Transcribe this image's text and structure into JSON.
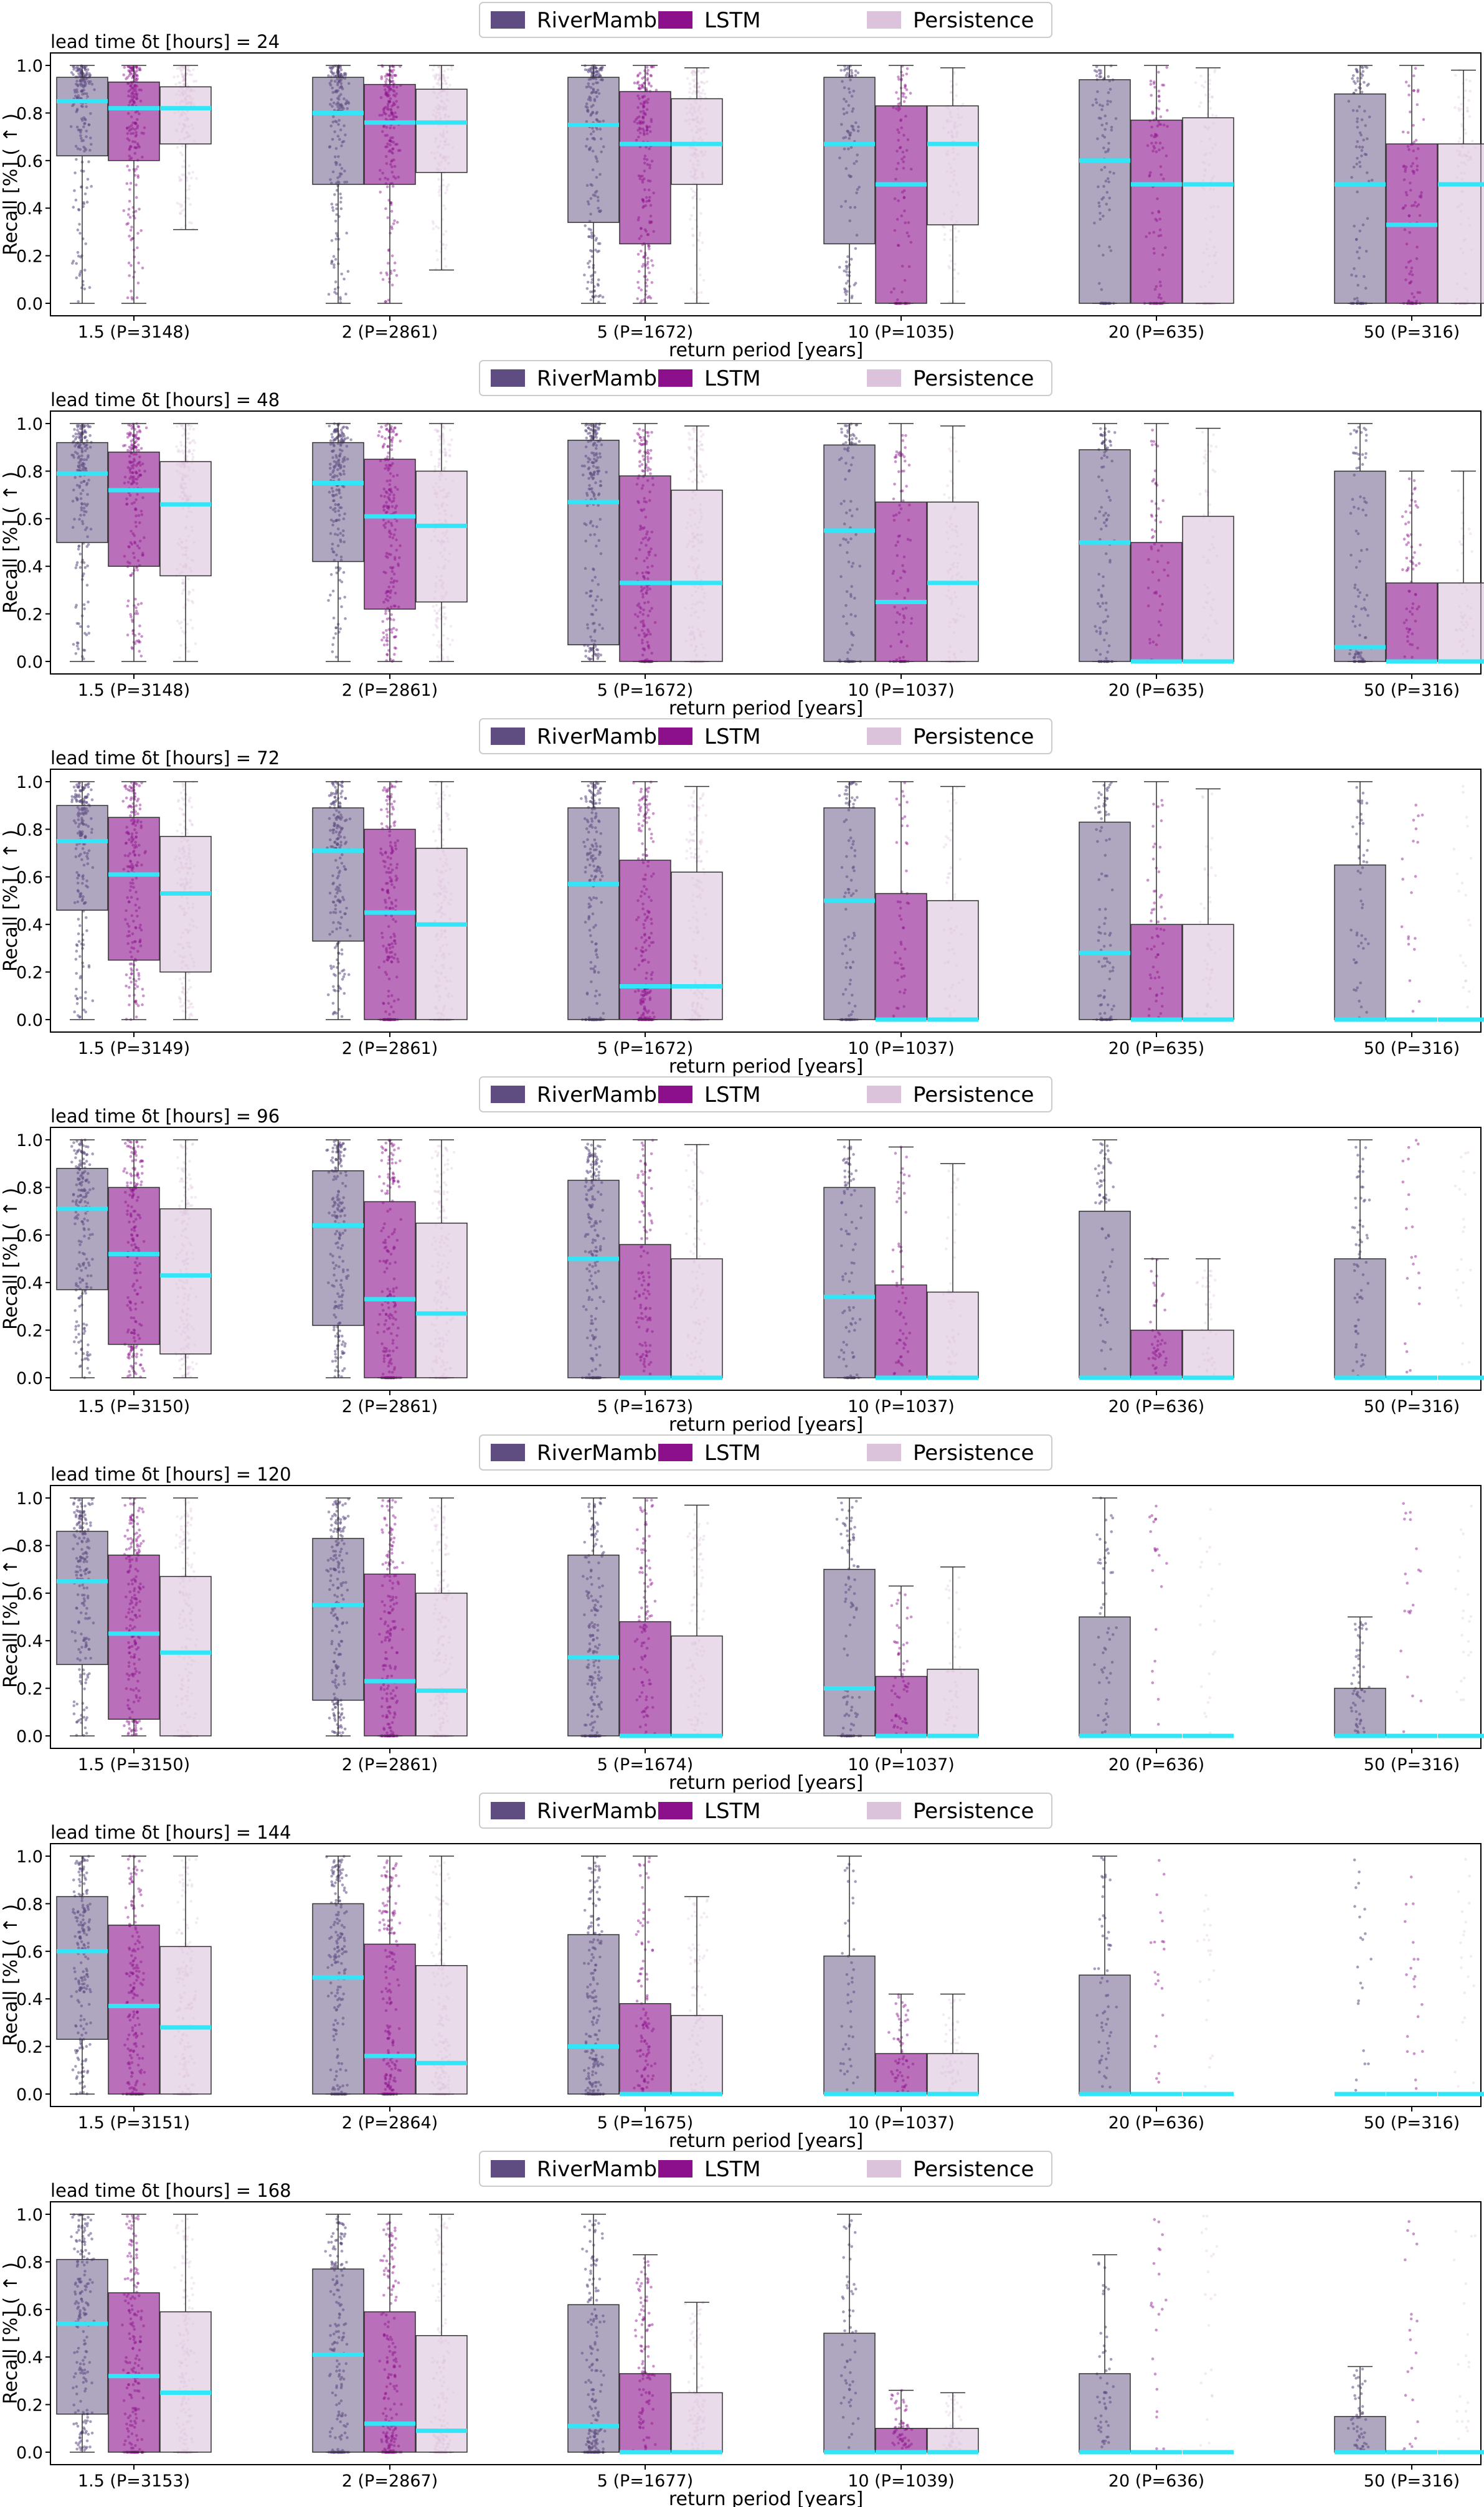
{
  "chart_data": {
    "type": "boxplot-strip",
    "description_units": "Recall [%] on a 0-1 scale",
    "xlabel": "return period [years]",
    "ylabel": "Recall [%] ( ↑ )",
    "ylim": [
      0.0,
      1.0
    ],
    "yticks": [
      "0.0",
      "0.2",
      "0.4",
      "0.6",
      "0.8",
      "1.0"
    ],
    "legend": {
      "placement": "top-center",
      "entries": [
        "RiverMamba",
        "LSTM",
        "Persistence"
      ]
    },
    "series_colors": {
      "RiverMamba": "#5f4d82",
      "LSTM": "#8c0f8c",
      "Persistence": "#dcc3dc",
      "median": "#33e6f7"
    },
    "panels": [
      {
        "title": "lead time δt [hours] = 24",
        "categories": [
          "1.5 (P=3148)",
          "2 (P=2861)",
          "5 (P=1672)",
          "10 (P=1035)",
          "20 (P=635)",
          "50 (P=316)"
        ],
        "series": [
          {
            "name": "RiverMamba",
            "q1": [
              0.62,
              0.5,
              0.34,
              0.25,
              0.0,
              0.0
            ],
            "median": [
              0.85,
              0.8,
              0.75,
              0.67,
              0.6,
              0.5
            ],
            "q3": [
              0.95,
              0.95,
              0.95,
              0.95,
              0.94,
              0.88
            ],
            "whisker_low": [
              0.0,
              0.0,
              0.0,
              0.0,
              0.0,
              0.0
            ],
            "whisker_high": [
              1.0,
              1.0,
              1.0,
              1.0,
              1.0,
              1.0
            ]
          },
          {
            "name": "LSTM",
            "q1": [
              0.6,
              0.5,
              0.25,
              0.0,
              0.0,
              0.0
            ],
            "median": [
              0.82,
              0.76,
              0.67,
              0.5,
              0.5,
              0.33
            ],
            "q3": [
              0.93,
              0.92,
              0.89,
              0.83,
              0.77,
              0.67
            ],
            "whisker_low": [
              0.0,
              0.0,
              0.0,
              0.0,
              0.0,
              0.0
            ],
            "whisker_high": [
              1.0,
              1.0,
              1.0,
              1.0,
              1.0,
              1.0
            ]
          },
          {
            "name": "Persistence",
            "q1": [
              0.67,
              0.55,
              0.5,
              0.33,
              0.0,
              0.0
            ],
            "median": [
              0.82,
              0.76,
              0.67,
              0.67,
              0.5,
              0.5
            ],
            "q3": [
              0.91,
              0.9,
              0.86,
              0.83,
              0.78,
              0.67
            ],
            "whisker_low": [
              0.31,
              0.14,
              0.0,
              0.0,
              0.0,
              0.0
            ],
            "whisker_high": [
              1.0,
              1.0,
              0.99,
              0.99,
              0.99,
              0.98
            ]
          }
        ]
      },
      {
        "title": "lead time δt [hours] = 48",
        "categories": [
          "1.5 (P=3148)",
          "2 (P=2861)",
          "5 (P=1672)",
          "10 (P=1037)",
          "20 (P=635)",
          "50 (P=316)"
        ],
        "series": [
          {
            "name": "RiverMamba",
            "q1": [
              0.5,
              0.42,
              0.07,
              0.0,
              0.0,
              0.0
            ],
            "median": [
              0.79,
              0.75,
              0.67,
              0.55,
              0.5,
              0.06
            ],
            "q3": [
              0.92,
              0.92,
              0.93,
              0.91,
              0.89,
              0.8
            ],
            "whisker_low": [
              0.0,
              0.0,
              0.0,
              0.0,
              0.0,
              0.0
            ],
            "whisker_high": [
              1.0,
              1.0,
              1.0,
              1.0,
              1.0,
              1.0
            ]
          },
          {
            "name": "LSTM",
            "q1": [
              0.4,
              0.22,
              0.0,
              0.0,
              0.0,
              0.0
            ],
            "median": [
              0.72,
              0.61,
              0.33,
              0.25,
              0.0,
              0.0
            ],
            "q3": [
              0.88,
              0.85,
              0.78,
              0.67,
              0.5,
              0.33
            ],
            "whisker_low": [
              0.0,
              0.0,
              0.0,
              0.0,
              0.0,
              0.0
            ],
            "whisker_high": [
              1.0,
              1.0,
              1.0,
              1.0,
              1.0,
              0.8
            ]
          },
          {
            "name": "Persistence",
            "q1": [
              0.36,
              0.25,
              0.0,
              0.0,
              0.0,
              0.0
            ],
            "median": [
              0.66,
              0.57,
              0.33,
              0.33,
              0.0,
              0.0
            ],
            "q3": [
              0.84,
              0.8,
              0.72,
              0.67,
              0.61,
              0.33
            ],
            "whisker_low": [
              0.0,
              0.0,
              0.0,
              0.0,
              0.0,
              0.0
            ],
            "whisker_high": [
              1.0,
              1.0,
              0.99,
              0.99,
              0.98,
              0.8
            ]
          }
        ]
      },
      {
        "title": "lead time δt [hours] = 72",
        "categories": [
          "1.5 (P=3149)",
          "2 (P=2861)",
          "5 (P=1672)",
          "10 (P=1037)",
          "20 (P=635)",
          "50 (P=316)"
        ],
        "series": [
          {
            "name": "RiverMamba",
            "q1": [
              0.46,
              0.33,
              0.0,
              0.0,
              0.0,
              0.0
            ],
            "median": [
              0.75,
              0.71,
              0.57,
              0.5,
              0.28,
              0.0
            ],
            "q3": [
              0.9,
              0.89,
              0.89,
              0.89,
              0.83,
              0.65
            ],
            "whisker_low": [
              0.0,
              0.0,
              0.0,
              0.0,
              0.0,
              0.0
            ],
            "whisker_high": [
              1.0,
              1.0,
              1.0,
              1.0,
              1.0,
              1.0
            ]
          },
          {
            "name": "LSTM",
            "q1": [
              0.25,
              0.0,
              0.0,
              0.0,
              0.0,
              0.0
            ],
            "median": [
              0.61,
              0.45,
              0.14,
              0.0,
              0.0,
              0.0
            ],
            "q3": [
              0.85,
              0.8,
              0.67,
              0.53,
              0.4,
              0.0
            ],
            "whisker_low": [
              0.0,
              0.0,
              0.0,
              0.0,
              0.0,
              0.0
            ],
            "whisker_high": [
              1.0,
              1.0,
              1.0,
              1.0,
              1.0,
              0.0
            ]
          },
          {
            "name": "Persistence",
            "q1": [
              0.2,
              0.0,
              0.0,
              0.0,
              0.0,
              0.0
            ],
            "median": [
              0.53,
              0.4,
              0.14,
              0.0,
              0.0,
              0.0
            ],
            "q3": [
              0.77,
              0.72,
              0.62,
              0.5,
              0.4,
              0.0
            ],
            "whisker_low": [
              0.0,
              0.0,
              0.0,
              0.0,
              0.0,
              0.0
            ],
            "whisker_high": [
              1.0,
              1.0,
              0.98,
              0.98,
              0.97,
              0.0
            ]
          }
        ]
      },
      {
        "title": "lead time δt [hours] = 96",
        "categories": [
          "1.5 (P=3150)",
          "2 (P=2861)",
          "5 (P=1673)",
          "10 (P=1037)",
          "20 (P=636)",
          "50 (P=316)"
        ],
        "series": [
          {
            "name": "RiverMamba",
            "q1": [
              0.37,
              0.22,
              0.0,
              0.0,
              0.0,
              0.0
            ],
            "median": [
              0.71,
              0.64,
              0.5,
              0.34,
              0.0,
              0.0
            ],
            "q3": [
              0.88,
              0.87,
              0.83,
              0.8,
              0.7,
              0.5
            ],
            "whisker_low": [
              0.0,
              0.0,
              0.0,
              0.0,
              0.0,
              0.0
            ],
            "whisker_high": [
              1.0,
              1.0,
              1.0,
              1.0,
              1.0,
              1.0
            ]
          },
          {
            "name": "LSTM",
            "q1": [
              0.14,
              0.0,
              0.0,
              0.0,
              0.0,
              0.0
            ],
            "median": [
              0.52,
              0.33,
              0.0,
              0.0,
              0.0,
              0.0
            ],
            "q3": [
              0.8,
              0.74,
              0.56,
              0.39,
              0.2,
              0.0
            ],
            "whisker_low": [
              0.0,
              0.0,
              0.0,
              0.0,
              0.0,
              0.0
            ],
            "whisker_high": [
              1.0,
              1.0,
              1.0,
              0.97,
              0.5,
              0.0
            ]
          },
          {
            "name": "Persistence",
            "q1": [
              0.1,
              0.0,
              0.0,
              0.0,
              0.0,
              0.0
            ],
            "median": [
              0.43,
              0.27,
              0.0,
              0.0,
              0.0,
              0.0
            ],
            "q3": [
              0.71,
              0.65,
              0.5,
              0.36,
              0.2,
              0.0
            ],
            "whisker_low": [
              0.0,
              0.0,
              0.0,
              0.0,
              0.0,
              0.0
            ],
            "whisker_high": [
              1.0,
              1.0,
              0.98,
              0.9,
              0.5,
              0.0
            ]
          }
        ]
      },
      {
        "title": "lead time δt [hours] = 120",
        "categories": [
          "1.5 (P=3150)",
          "2 (P=2861)",
          "5 (P=1674)",
          "10 (P=1037)",
          "20 (P=636)",
          "50 (P=316)"
        ],
        "series": [
          {
            "name": "RiverMamba",
            "q1": [
              0.3,
              0.15,
              0.0,
              0.0,
              0.0,
              0.0
            ],
            "median": [
              0.65,
              0.55,
              0.33,
              0.2,
              0.0,
              0.0
            ],
            "q3": [
              0.86,
              0.83,
              0.76,
              0.7,
              0.5,
              0.2
            ],
            "whisker_low": [
              0.0,
              0.0,
              0.0,
              0.0,
              0.0,
              0.0
            ],
            "whisker_high": [
              1.0,
              1.0,
              1.0,
              1.0,
              1.0,
              0.5
            ]
          },
          {
            "name": "LSTM",
            "q1": [
              0.07,
              0.0,
              0.0,
              0.0,
              0.0,
              0.0
            ],
            "median": [
              0.43,
              0.23,
              0.0,
              0.0,
              0.0,
              0.0
            ],
            "q3": [
              0.76,
              0.68,
              0.48,
              0.25,
              0.0,
              0.0
            ],
            "whisker_low": [
              0.0,
              0.0,
              0.0,
              0.0,
              0.0,
              0.0
            ],
            "whisker_high": [
              1.0,
              1.0,
              1.0,
              0.63,
              0.0,
              0.0
            ]
          },
          {
            "name": "Persistence",
            "q1": [
              0.0,
              0.0,
              0.0,
              0.0,
              0.0,
              0.0
            ],
            "median": [
              0.35,
              0.19,
              0.0,
              0.0,
              0.0,
              0.0
            ],
            "q3": [
              0.67,
              0.6,
              0.42,
              0.28,
              0.0,
              0.0
            ],
            "whisker_low": [
              0.0,
              0.0,
              0.0,
              0.0,
              0.0,
              0.0
            ],
            "whisker_high": [
              1.0,
              1.0,
              0.97,
              0.71,
              0.0,
              0.0
            ]
          }
        ]
      },
      {
        "title": "lead time δt [hours] = 144",
        "categories": [
          "1.5 (P=3151)",
          "2 (P=2864)",
          "5 (P=1675)",
          "10 (P=1037)",
          "20 (P=636)",
          "50 (P=316)"
        ],
        "series": [
          {
            "name": "RiverMamba",
            "q1": [
              0.23,
              0.0,
              0.0,
              0.0,
              0.0,
              0.0
            ],
            "median": [
              0.6,
              0.49,
              0.2,
              0.0,
              0.0,
              0.0
            ],
            "q3": [
              0.83,
              0.8,
              0.67,
              0.58,
              0.5,
              0.0
            ],
            "whisker_low": [
              0.0,
              0.0,
              0.0,
              0.0,
              0.0,
              0.0
            ],
            "whisker_high": [
              1.0,
              1.0,
              1.0,
              1.0,
              1.0,
              0.0
            ]
          },
          {
            "name": "LSTM",
            "q1": [
              0.0,
              0.0,
              0.0,
              0.0,
              0.0,
              0.0
            ],
            "median": [
              0.37,
              0.16,
              0.0,
              0.0,
              0.0,
              0.0
            ],
            "q3": [
              0.71,
              0.63,
              0.38,
              0.17,
              0.0,
              0.0
            ],
            "whisker_low": [
              0.0,
              0.0,
              0.0,
              0.0,
              0.0,
              0.0
            ],
            "whisker_high": [
              1.0,
              1.0,
              1.0,
              0.42,
              0.0,
              0.0
            ]
          },
          {
            "name": "Persistence",
            "q1": [
              0.0,
              0.0,
              0.0,
              0.0,
              0.0,
              0.0
            ],
            "median": [
              0.28,
              0.13,
              0.0,
              0.0,
              0.0,
              0.0
            ],
            "q3": [
              0.62,
              0.54,
              0.33,
              0.17,
              0.0,
              0.0
            ],
            "whisker_low": [
              0.0,
              0.0,
              0.0,
              0.0,
              0.0,
              0.0
            ],
            "whisker_high": [
              1.0,
              1.0,
              0.83,
              0.42,
              0.0,
              0.0
            ]
          }
        ]
      },
      {
        "title": "lead time δt [hours] = 168",
        "categories": [
          "1.5 (P=3153)",
          "2 (P=2867)",
          "5 (P=1677)",
          "10 (P=1039)",
          "20 (P=636)",
          "50 (P=316)"
        ],
        "series": [
          {
            "name": "RiverMamba",
            "q1": [
              0.16,
              0.0,
              0.0,
              0.0,
              0.0,
              0.0
            ],
            "median": [
              0.54,
              0.41,
              0.11,
              0.0,
              0.0,
              0.0
            ],
            "q3": [
              0.81,
              0.77,
              0.62,
              0.5,
              0.33,
              0.15
            ],
            "whisker_low": [
              0.0,
              0.0,
              0.0,
              0.0,
              0.0,
              0.0
            ],
            "whisker_high": [
              1.0,
              1.0,
              1.0,
              1.0,
              0.83,
              0.36
            ]
          },
          {
            "name": "LSTM",
            "q1": [
              0.0,
              0.0,
              0.0,
              0.0,
              0.0,
              0.0
            ],
            "median": [
              0.32,
              0.12,
              0.0,
              0.0,
              0.0,
              0.0
            ],
            "q3": [
              0.67,
              0.59,
              0.33,
              0.1,
              0.0,
              0.0
            ],
            "whisker_low": [
              0.0,
              0.0,
              0.0,
              0.0,
              0.0,
              0.0
            ],
            "whisker_high": [
              1.0,
              1.0,
              0.83,
              0.26,
              0.0,
              0.0
            ]
          },
          {
            "name": "Persistence",
            "q1": [
              0.0,
              0.0,
              0.0,
              0.0,
              0.0,
              0.0
            ],
            "median": [
              0.25,
              0.09,
              0.0,
              0.0,
              0.0,
              0.0
            ],
            "q3": [
              0.59,
              0.49,
              0.25,
              0.1,
              0.0,
              0.0
            ],
            "whisker_low": [
              0.0,
              0.0,
              0.0,
              0.0,
              0.0,
              0.0
            ],
            "whisker_high": [
              1.0,
              1.0,
              0.63,
              0.25,
              0.0,
              0.0
            ]
          }
        ]
      }
    ]
  }
}
